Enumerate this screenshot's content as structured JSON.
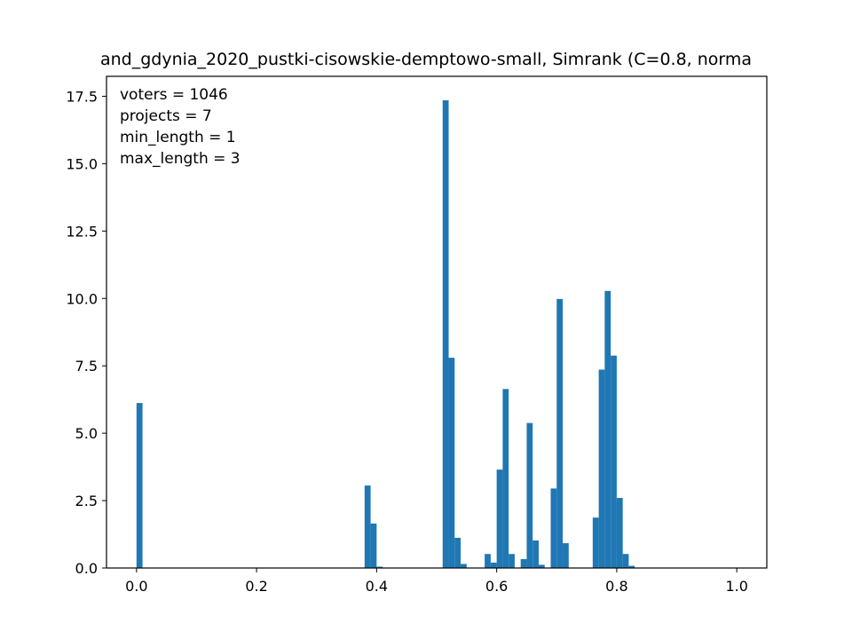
{
  "chart_data": {
    "type": "bar",
    "title": "and_gdynia_2020_pustki-cisowskie-demptowo-small, Simrank (C=0.8, norma",
    "xlabel": "",
    "ylabel": "",
    "xlim": [
      -0.05,
      1.05
    ],
    "ylim": [
      0,
      18.24
    ],
    "bin_width": 0.01,
    "xticks": [
      0.0,
      0.2,
      0.4,
      0.6,
      0.8,
      1.0
    ],
    "xtick_labels": [
      "0.0",
      "0.2",
      "0.4",
      "0.6",
      "0.8",
      "1.0"
    ],
    "yticks": [
      0.0,
      2.5,
      5.0,
      7.5,
      10.0,
      12.5,
      15.0,
      17.5
    ],
    "ytick_labels": [
      "0.0",
      "2.5",
      "5.0",
      "7.5",
      "10.0",
      "12.5",
      "15.0",
      "17.5"
    ],
    "annotations": [
      "voters = 1046",
      "projects = 7",
      "min_length = 1",
      "max_length = 3"
    ],
    "bar_color": "#1f77b4",
    "bins_left": [
      0.0,
      0.38,
      0.39,
      0.4,
      0.51,
      0.52,
      0.53,
      0.54,
      0.58,
      0.59,
      0.6,
      0.61,
      0.62,
      0.64,
      0.65,
      0.66,
      0.67,
      0.69,
      0.7,
      0.71,
      0.76,
      0.77,
      0.78,
      0.79,
      0.8,
      0.81,
      0.82
    ],
    "values": [
      6.12,
      3.06,
      1.65,
      0.05,
      17.35,
      7.8,
      1.12,
      0.15,
      0.52,
      0.2,
      3.65,
      6.64,
      0.52,
      0.33,
      5.38,
      1.02,
      0.12,
      2.95,
      9.98,
      0.92,
      1.87,
      7.36,
      10.28,
      7.88,
      2.6,
      0.52,
      0.08
    ]
  }
}
